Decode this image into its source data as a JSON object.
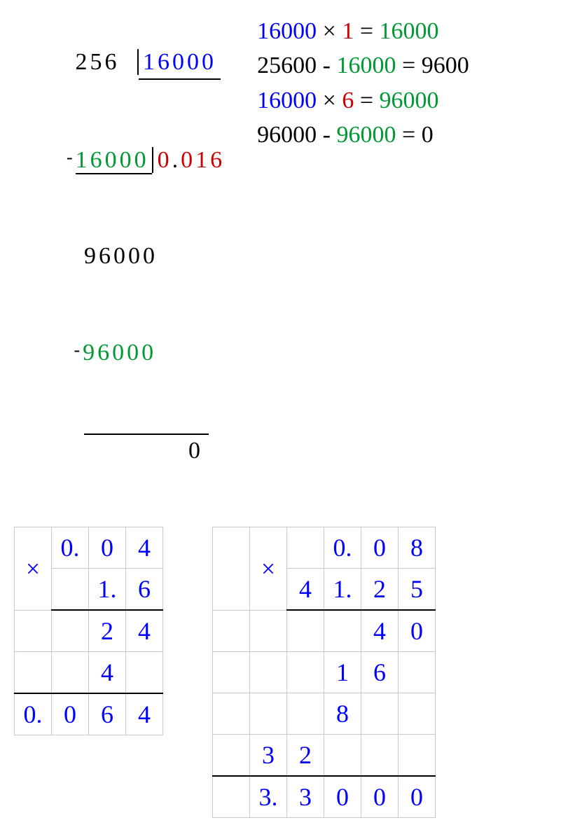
{
  "colors": {
    "blue": "#0000ff",
    "green": "#009933",
    "red": "#cc0000",
    "black": "#000000",
    "grid": "#c8c8d8",
    "background": "#ffffff"
  },
  "typography": {
    "family": "Times New Roman",
    "base_size_pt": 28,
    "table_size_pt": 30
  },
  "long_division": {
    "dividend": "256",
    "divisor": "16000",
    "quotient_int": "0",
    "quotient_dot": ".",
    "quotient_frac": "016",
    "minus1": "-",
    "sub1": "16000",
    "after_sub1": "96000",
    "minus2": "-",
    "sub2": "96000",
    "remainder": "0"
  },
  "steps": [
    {
      "a": "16000",
      "op": "×",
      "b": "1",
      "eq": "=",
      "r": "16000",
      "a_color": "blue",
      "b_color": "red",
      "r_color": "green"
    },
    {
      "a": "25600",
      "op": "-",
      "b": "16000",
      "eq": "=",
      "r": "9600",
      "a_color": "black",
      "b_color": "green",
      "r_color": "black"
    },
    {
      "a": "16000",
      "op": "×",
      "b": "6",
      "eq": "=",
      "r": "96000",
      "a_color": "blue",
      "b_color": "red",
      "r_color": "green"
    },
    {
      "a": "96000",
      "op": "-",
      "b": "96000",
      "eq": "=",
      "r": "0",
      "a_color": "black",
      "b_color": "green",
      "r_color": "black"
    }
  ],
  "table1": {
    "cols": 4,
    "mult_sign_rowspan": 2,
    "rows": [
      {
        "cells": [
          "0.",
          "0",
          "4"
        ],
        "border_bottom": false,
        "lead_mult": true
      },
      {
        "cells": [
          "",
          "1.",
          "6"
        ],
        "border_bottom": true,
        "lead_mult": false
      },
      {
        "cells": [
          "",
          "",
          "2",
          "4"
        ],
        "border_bottom": false
      },
      {
        "cells": [
          "",
          "",
          "4",
          ""
        ],
        "border_bottom": true
      },
      {
        "cells": [
          "0.",
          "0",
          "6",
          "4"
        ],
        "border_bottom": false
      }
    ]
  },
  "table2": {
    "cols": 6,
    "mult_sign_rowspan": 2,
    "rows": [
      {
        "cells": [
          "",
          "0.",
          "0",
          "8"
        ],
        "lead_blank": true,
        "lead_mult": true,
        "border_bottom": false
      },
      {
        "cells": [
          "4",
          "1.",
          "2",
          "5"
        ],
        "lead_blank": true,
        "lead_mult": false,
        "border_bottom": true
      },
      {
        "cells": [
          "",
          "",
          "",
          "",
          "4",
          "0"
        ],
        "border_bottom": false
      },
      {
        "cells": [
          "",
          "",
          "",
          "1",
          "6",
          ""
        ],
        "border_bottom": false
      },
      {
        "cells": [
          "",
          "",
          "",
          "8",
          "",
          ""
        ],
        "border_bottom": false
      },
      {
        "cells": [
          "",
          "3",
          "2",
          "",
          "",
          ""
        ],
        "border_bottom": true
      },
      {
        "cells": [
          "",
          "3.",
          "3",
          "0",
          "0",
          "0"
        ],
        "border_bottom": false
      }
    ]
  }
}
